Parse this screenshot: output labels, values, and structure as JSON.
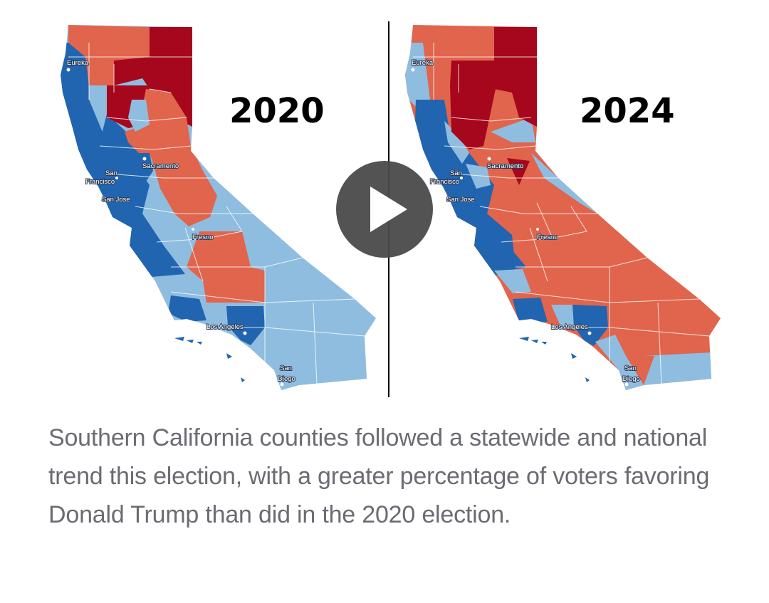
{
  "video": {
    "left_year": "2020",
    "right_year": "2024",
    "cities": [
      "Eureka",
      "Sacramento",
      "San",
      "Francisco",
      "San Jose",
      "Fresno",
      "Los Angeles",
      "San",
      "Diego"
    ],
    "colors": {
      "strong_dem": "#2165b0",
      "lean_dem": "#8fbde0",
      "lean_rep": "#e0654c",
      "strong_rep": "#a6071c"
    },
    "play_icon": "play-icon"
  },
  "caption": "Southern California counties followed a statewide and national trend this election, with a greater percentage of voters favoring Donald Trump than did in the 2020 election."
}
